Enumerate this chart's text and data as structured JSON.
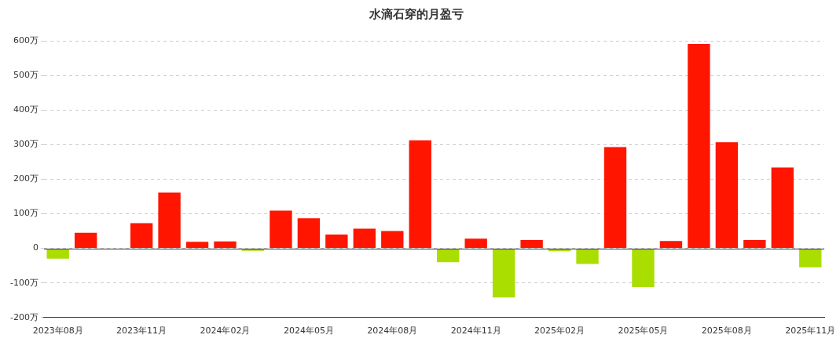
{
  "chart_data": {
    "type": "bar",
    "title": "水滴石穿的月盈亏",
    "categories": [
      "2023年08月",
      null,
      null,
      "2023年11月",
      null,
      null,
      "2024年02月",
      null,
      null,
      "2024年05月",
      null,
      null,
      "2024年08月",
      null,
      null,
      "2024年11月",
      null,
      null,
      "2025年02月",
      null,
      null,
      "2025年05月",
      null,
      null,
      "2025年08月",
      null,
      null,
      "2025年11月"
    ],
    "values": [
      -30,
      45,
      0,
      73,
      161,
      19,
      20,
      -7,
      109,
      87,
      40,
      57,
      50,
      312,
      -40,
      28,
      -142,
      24,
      -8,
      -45,
      293,
      -112,
      21,
      591,
      307,
      24,
      234,
      -55
    ],
    "colors": [
      "#aadd00",
      "#ff1500",
      "#ff1500",
      "#ff1500",
      "#ff1500",
      "#ff1500",
      "#ff1500",
      "#aadd00",
      "#ff1500",
      "#ff1500",
      "#ff1500",
      "#ff1500",
      "#ff1500",
      "#ff1500",
      "#aadd00",
      "#ff1500",
      "#aadd00",
      "#ff1500",
      "#aadd00",
      "#aadd00",
      "#ff1500",
      "#aadd00",
      "#ff1500",
      "#ff1500",
      "#ff1500",
      "#ff1500",
      "#ff1500",
      "#aadd00"
    ],
    "ylim": [
      -200,
      600
    ],
    "yticks": [
      {
        "value": -200,
        "label": "-200万"
      },
      {
        "value": -100,
        "label": "-100万"
      },
      0,
      {
        "value": 100,
        "label": "100万"
      },
      {
        "value": 200,
        "label": "200万"
      },
      {
        "value": 300,
        "label": "300万"
      },
      {
        "value": 400,
        "label": "400万"
      },
      {
        "value": 500,
        "label": "500万"
      },
      {
        "value": 600,
        "label": "600万"
      }
    ],
    "grid": "y",
    "legend": false
  }
}
